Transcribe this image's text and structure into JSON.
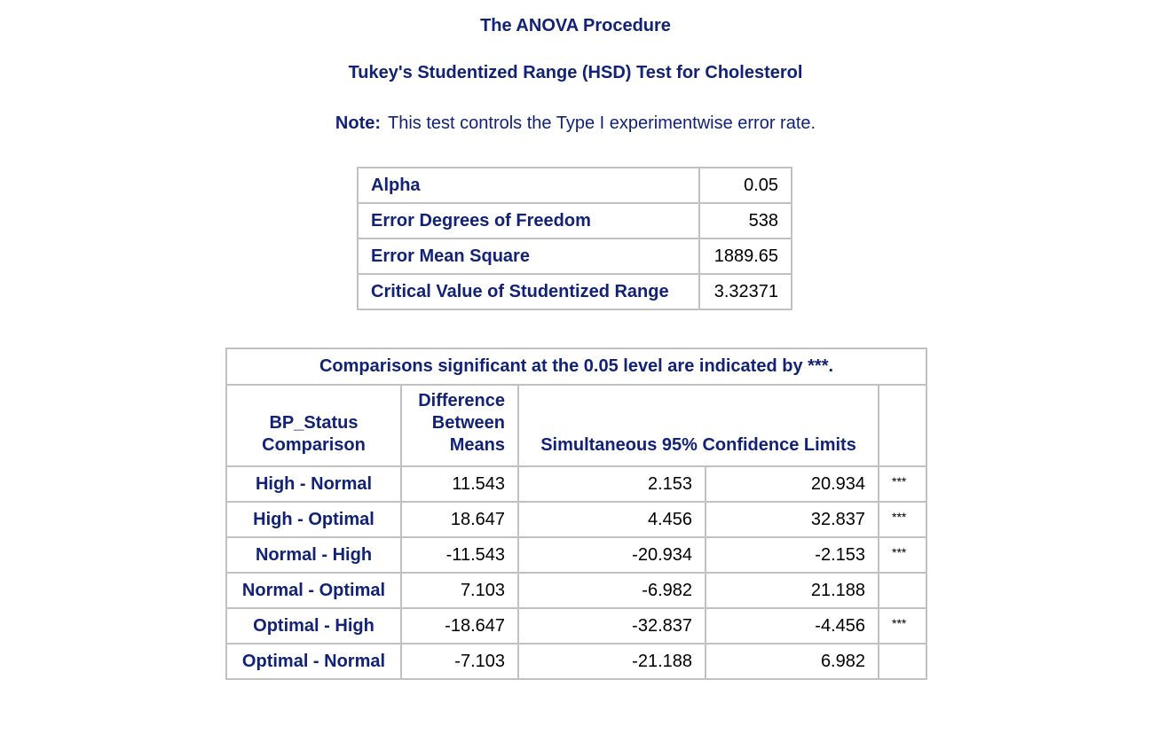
{
  "procedure_title": "The ANOVA Procedure",
  "test_title": "Tukey's Studentized Range (HSD) Test for Cholesterol",
  "note": {
    "label": "Note:",
    "text": "This test controls the Type I experimentwise error rate."
  },
  "parameters": [
    {
      "label": "Alpha",
      "value": "0.05"
    },
    {
      "label": "Error Degrees of Freedom",
      "value": "538"
    },
    {
      "label": "Error Mean Square",
      "value": "1889.65"
    },
    {
      "label": "Critical Value of Studentized Range",
      "value": "3.32371"
    }
  ],
  "comparisons": {
    "caption": "Comparisons significant at the 0.05 level are indicated by ***.",
    "headers": {
      "comparison_line1": "BP_Status",
      "comparison_line2": "Comparison",
      "difference_line1": "Difference",
      "difference_line2": "Between",
      "difference_line3": "Means",
      "confidence_limits": "Simultaneous 95% Confidence Limits"
    },
    "rows": [
      {
        "comparison": "High - Normal",
        "difference": "11.543",
        "lower": "2.153",
        "upper": "20.934",
        "significance": "***"
      },
      {
        "comparison": "High - Optimal",
        "difference": "18.647",
        "lower": "4.456",
        "upper": "32.837",
        "significance": "***"
      },
      {
        "comparison": "Normal - High",
        "difference": "-11.543",
        "lower": "-20.934",
        "upper": "-2.153",
        "significance": "***"
      },
      {
        "comparison": "Normal - Optimal",
        "difference": "7.103",
        "lower": "-6.982",
        "upper": "21.188",
        "significance": ""
      },
      {
        "comparison": "Optimal - High",
        "difference": "-18.647",
        "lower": "-32.837",
        "upper": "-4.456",
        "significance": "***"
      },
      {
        "comparison": "Optimal - Normal",
        "difference": "-7.103",
        "lower": "-21.188",
        "upper": "6.982",
        "significance": ""
      }
    ]
  },
  "colors": {
    "header_text": "#112277",
    "border": "#c1c1c1",
    "background": "#ffffff"
  }
}
